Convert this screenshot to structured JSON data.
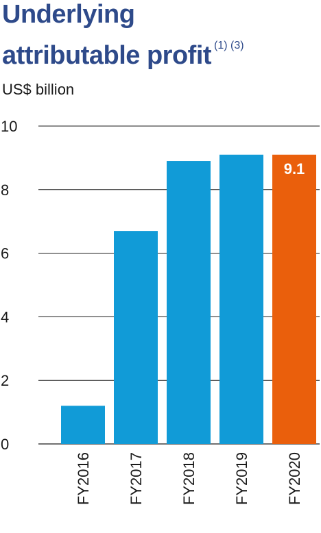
{
  "header": {
    "title_line1": "Underlying",
    "title_line2": "attributable profit",
    "footnotes": "(1) (3)"
  },
  "chart_data": {
    "type": "bar",
    "ylabel": "US$ billion",
    "categories": [
      "FY2016",
      "FY2017",
      "FY2018",
      "FY2019",
      "FY2020"
    ],
    "values": [
      1.2,
      6.7,
      8.9,
      9.1,
      9.1
    ],
    "ylim": [
      0,
      10
    ],
    "yticks": [
      0,
      2,
      4,
      6,
      8,
      10
    ],
    "grid": true,
    "data_labels": [
      {
        "category": "FY2020",
        "text": "9.1"
      }
    ],
    "colors": {
      "default": "#119bd7",
      "highlight": "#ea5f0c",
      "highlight_category": "FY2020",
      "title": "#2e4a8a"
    }
  }
}
